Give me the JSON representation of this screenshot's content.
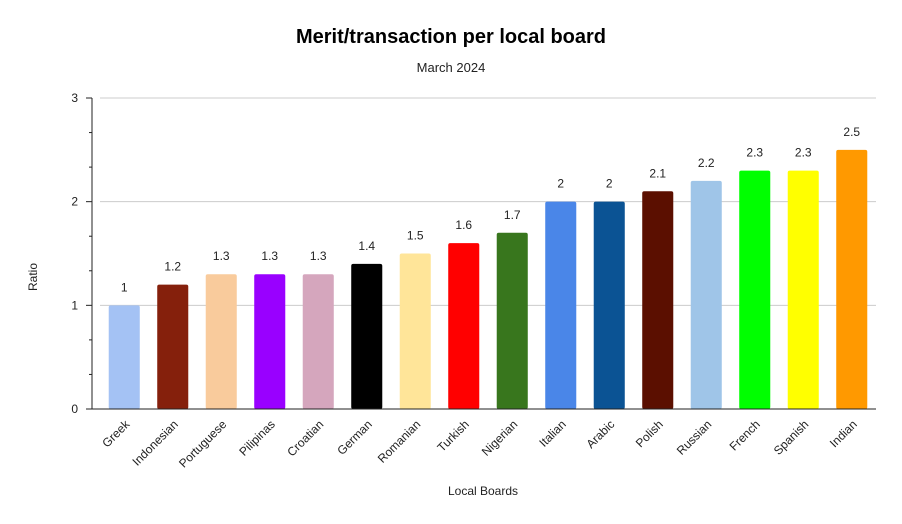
{
  "chart_data": {
    "type": "bar",
    "title": "Merit/transaction per local board",
    "subtitle": "March 2024",
    "xlabel": "Local Boards",
    "ylabel": "Ratio",
    "ylim": [
      0,
      3
    ],
    "yticks": [
      "0",
      "1",
      "2",
      "3"
    ],
    "grid": true,
    "categories": [
      "Greek",
      "Indonesian",
      "Portuguese",
      "Pilipinas",
      "Croatian",
      "German",
      "Romanian",
      "Turkish",
      "Nigerian",
      "Italian",
      "Arabic",
      "Polish",
      "Russian",
      "French",
      "Spanish",
      "Indian"
    ],
    "values": [
      1,
      1.2,
      1.3,
      1.3,
      1.3,
      1.4,
      1.5,
      1.6,
      1.7,
      2,
      2,
      2.1,
      2.2,
      2.3,
      2.3,
      2.5
    ],
    "value_labels": [
      "1",
      "1.2",
      "1.3",
      "1.3",
      "1.3",
      "1.4",
      "1.5",
      "1.6",
      "1.7",
      "2",
      "2",
      "2.1",
      "2.2",
      "2.3",
      "2.3",
      "2.5"
    ],
    "colors": [
      "#a4c2f4",
      "#85200c",
      "#f9cb9c",
      "#9900ff",
      "#d5a6bd",
      "#000000",
      "#ffe599",
      "#ff0000",
      "#38761d",
      "#4a86e8",
      "#0b5394",
      "#5b0f00",
      "#9fc5e8",
      "#00ff00",
      "#ffff00",
      "#ff9900"
    ]
  }
}
